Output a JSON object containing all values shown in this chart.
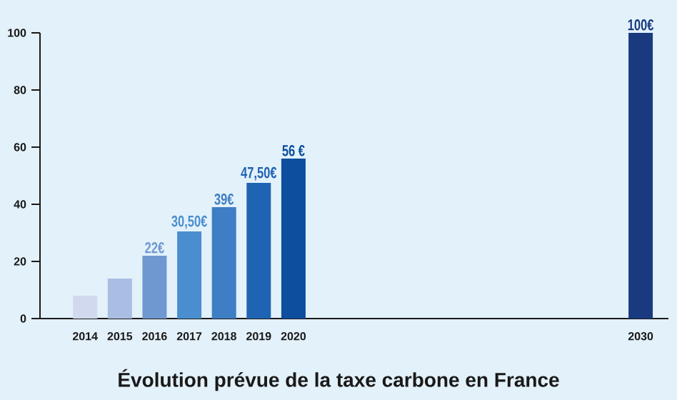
{
  "chart_data": {
    "type": "bar",
    "title": "Évolution prévue de la taxe carbone en France",
    "x": [
      2014,
      2015,
      2016,
      2017,
      2018,
      2019,
      2020,
      2030
    ],
    "values": [
      8,
      14,
      22,
      30.5,
      39,
      47.5,
      56,
      100
    ],
    "value_labels": [
      null,
      null,
      "22€",
      "30,50€",
      "39€",
      "47,50€",
      "56 €",
      "100€"
    ],
    "colors": [
      "#d0d9ee",
      "#a9bee2",
      "#6f98d0",
      "#4a8ed0",
      "#3d7ec4",
      "#1f63b3",
      "#0d4e9e",
      "#1a3a80"
    ],
    "xlim": [
      2012.7,
      2030.8
    ],
    "xticks": [
      2014,
      2015,
      2016,
      2017,
      2018,
      2019,
      2020,
      2030
    ],
    "ylim": [
      0,
      100
    ],
    "yticks": [
      0,
      20,
      40,
      60,
      80,
      100
    ]
  }
}
